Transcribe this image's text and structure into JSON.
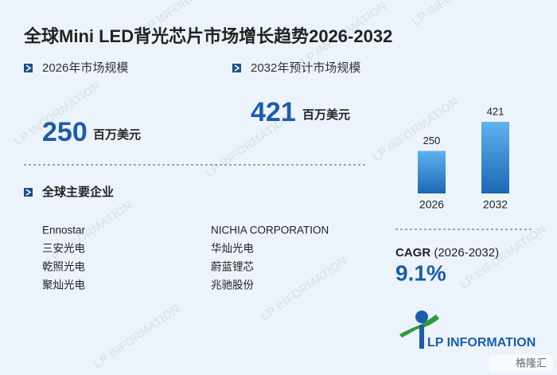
{
  "title": "全球Mini LED背光芯片市场增长趋势2026-2032",
  "stats": [
    {
      "label": "2026年市场规模",
      "value": "250",
      "unit": "百万美元"
    },
    {
      "label": "2032年预计市场规模",
      "value": "421",
      "unit": "百万美元"
    }
  ],
  "companies": {
    "heading": "全球主要企业",
    "names": [
      "Ennostar",
      "NICHIA CORPORATION",
      "三安光电",
      "华灿光电",
      "乾照光电",
      "蔚蓝锂芯",
      "聚灿光电",
      "兆驰股份"
    ]
  },
  "cagr": {
    "label": "CAGR",
    "period": "(2026-2032)",
    "value": "9.1%"
  },
  "logo_text": "LP INFORMATION",
  "watermark": "LP INFORMATION",
  "badge": "格隆汇",
  "chart_data": {
    "type": "bar",
    "categories": [
      "2026",
      "2032"
    ],
    "values": [
      250,
      421
    ],
    "color": "#2a7fcf"
  }
}
